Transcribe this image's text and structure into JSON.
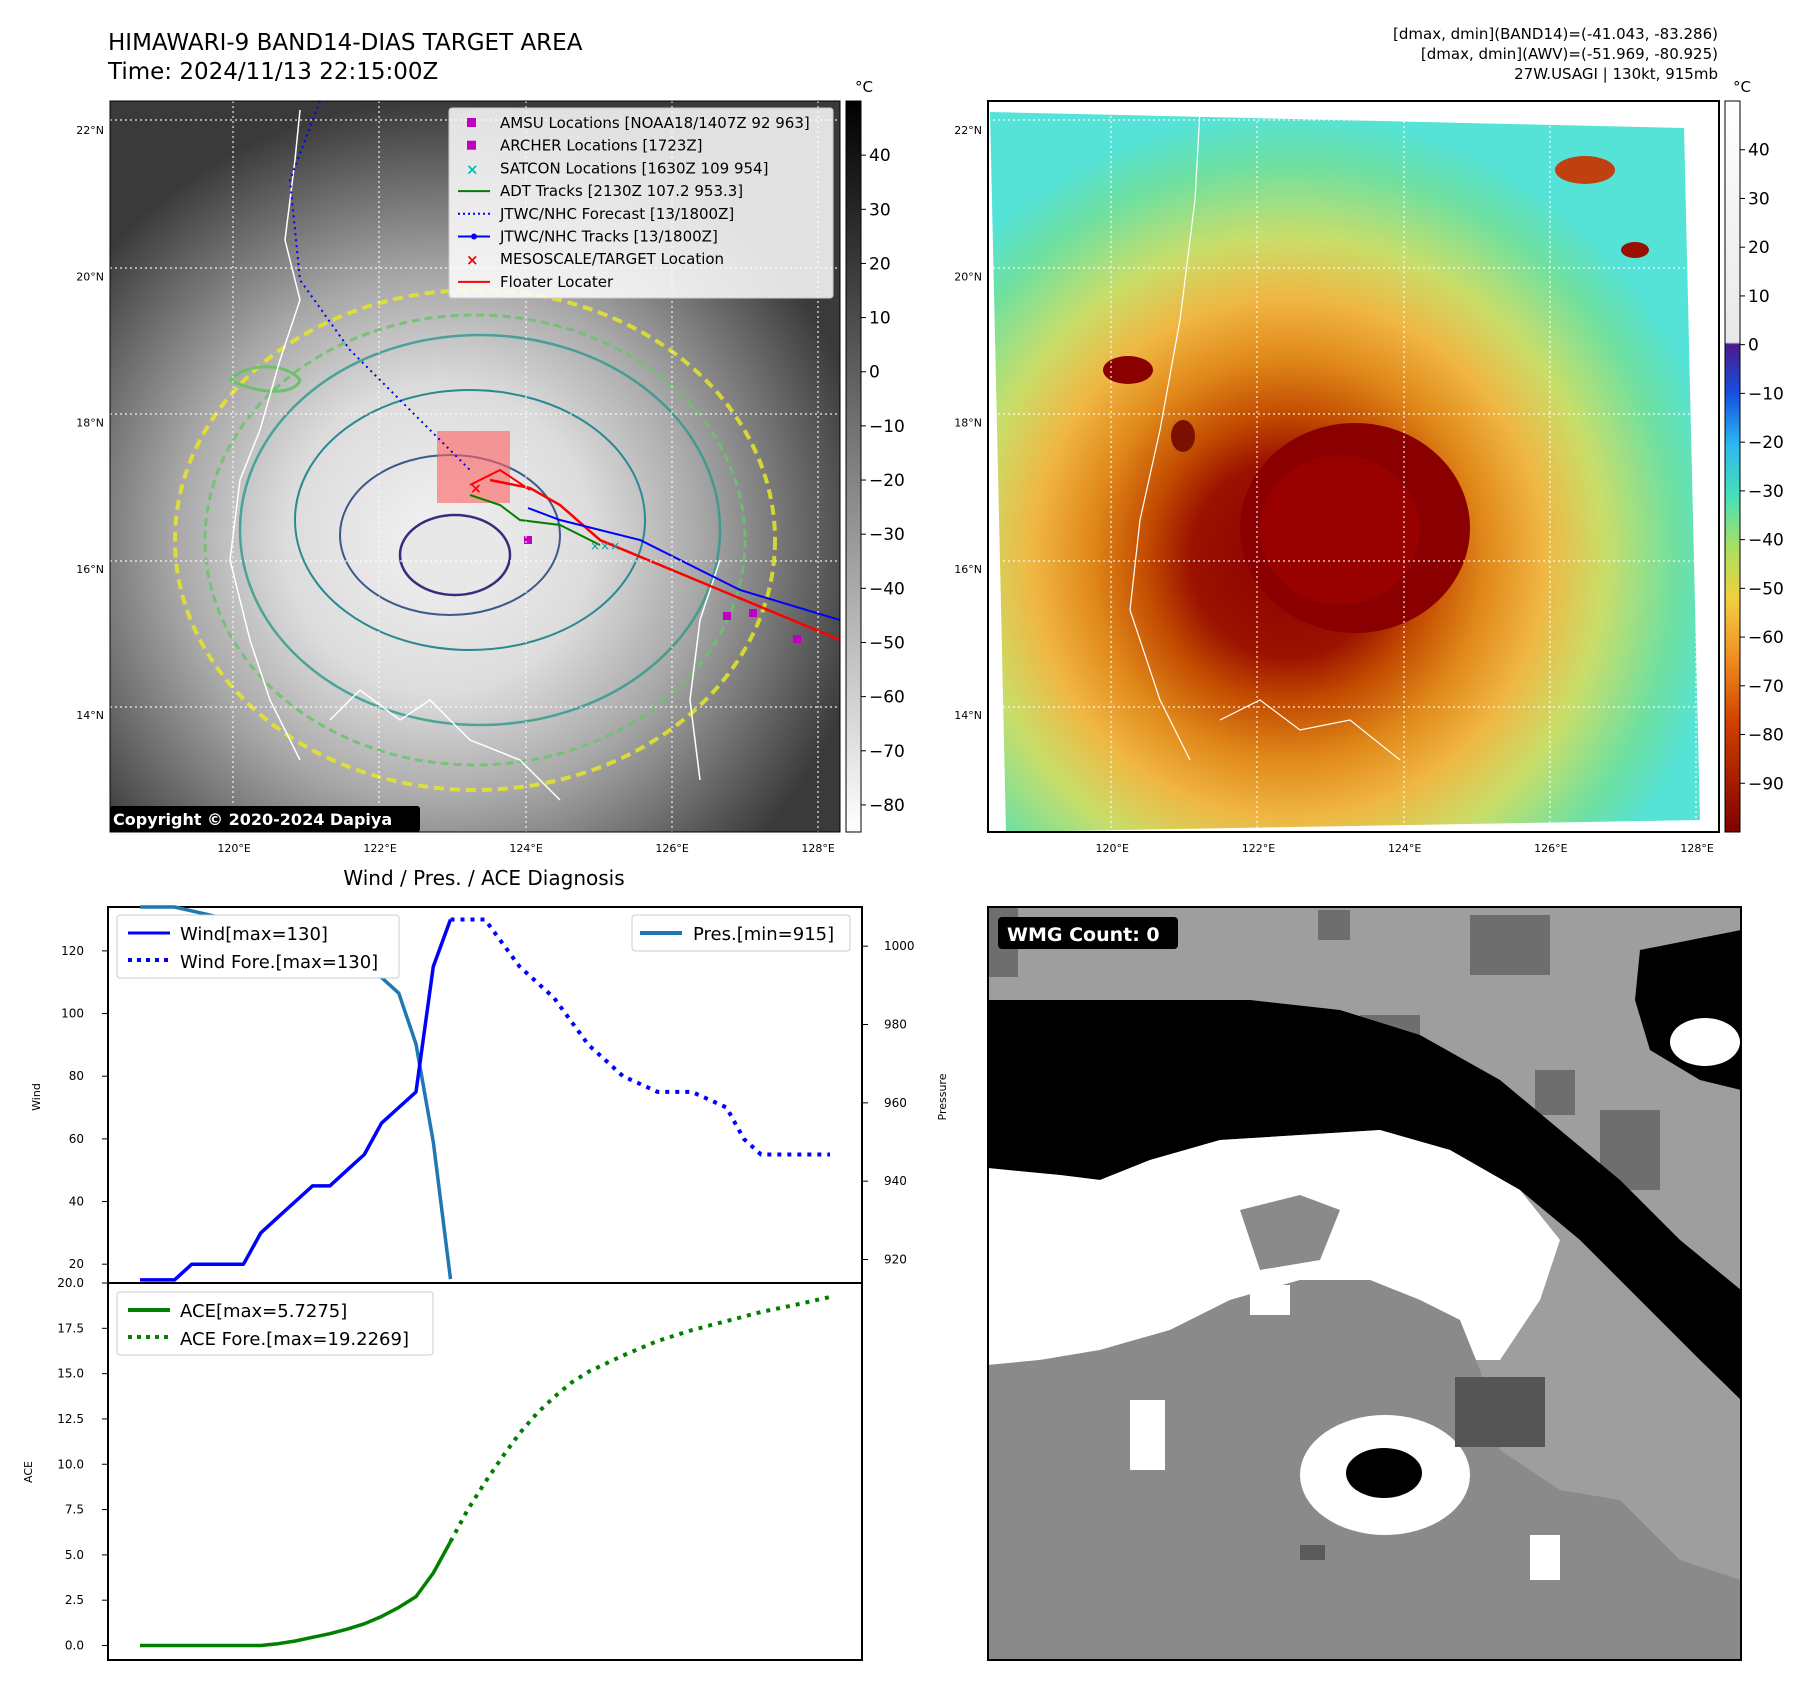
{
  "header": {
    "title_line1": "HIMAWARI-9 BAND14-DIAS TARGET AREA",
    "title_line2": "Time: 2024/11/13 22:15:00Z",
    "info_line1": "[dmax, dmin](BAND14)=(-41.043, -83.286)",
    "info_line2": "[dmax, dmin](AWV)=(-51.969, -80.925)",
    "info_line3": "27W.USAGI | 130kt, 915mb"
  },
  "map": {
    "lat_labels": [
      "22°N",
      "20°N",
      "18°N",
      "16°N",
      "14°N"
    ],
    "lon_labels": [
      "120°E",
      "122°E",
      "124°E",
      "126°E",
      "128°E"
    ],
    "lat_values": [
      22,
      20,
      18,
      16,
      14
    ],
    "lon_values": [
      120,
      122,
      124,
      126,
      128
    ],
    "lat_range": [
      12.4,
      22.4
    ],
    "lon_range": [
      118.3,
      128.3
    ],
    "copyright": "Copyright © 2020-2024 Dapiya",
    "legend": [
      {
        "label": "AMSU Locations [NOAA18/1407Z 92 963]",
        "marker": "square",
        "color": "#c000c0"
      },
      {
        "label": "ARCHER Locations [1723Z]",
        "marker": "square",
        "color": "#c000c0"
      },
      {
        "label": "SATCON Locations [1630Z 109 954]",
        "marker": "x",
        "color": "#00bfbf"
      },
      {
        "label": "ADT Tracks [2130Z 107.2 953.3]",
        "marker": "line",
        "color": "#007f00"
      },
      {
        "label": "JTWC/NHC Forecast [13/1800Z]",
        "marker": "dotted",
        "color": "#0000ff"
      },
      {
        "label": "JTWC/NHC Tracks [13/1800Z]",
        "marker": "line-dot",
        "color": "#0000ff"
      },
      {
        "label": "MESOSCALE/TARGET Location",
        "marker": "x",
        "color": "#ff0000"
      },
      {
        "label": "Floater Locater",
        "marker": "line",
        "color": "#ff0000"
      }
    ]
  },
  "colorbar_gray": {
    "unit": "°C",
    "ticks": [
      "40",
      "30",
      "20",
      "10",
      "0",
      "−10",
      "−20",
      "−30",
      "−40",
      "−50",
      "−60",
      "−70",
      "−80"
    ],
    "tick_values": [
      40,
      30,
      20,
      10,
      0,
      -10,
      -20,
      -30,
      -40,
      -50,
      -60,
      -70,
      -80
    ],
    "range": [
      -85,
      50
    ]
  },
  "colorbar_color": {
    "unit": "°C",
    "ticks": [
      "40",
      "30",
      "20",
      "10",
      "0",
      "−10",
      "−20",
      "−30",
      "−40",
      "−50",
      "−60",
      "−70",
      "−80",
      "−90"
    ],
    "tick_values": [
      40,
      30,
      20,
      10,
      0,
      -10,
      -20,
      -30,
      -40,
      -50,
      -60,
      -70,
      -80,
      -90
    ],
    "range": [
      -100,
      50
    ]
  },
  "wmg": {
    "label": "WMG Count: 0"
  },
  "chart_data": [
    {
      "type": "line",
      "title": "Wind / Pres. / ACE Diagnosis",
      "ylabel": "Wind",
      "ylabel_right": "Pressure",
      "ylim": [
        14,
        134
      ],
      "ylim_right": [
        914,
        1010
      ],
      "xlim": [
        0,
        40
      ],
      "y_ticks": [
        20,
        40,
        60,
        80,
        100,
        120
      ],
      "y_ticks_right": [
        920,
        940,
        960,
        980,
        1000
      ],
      "series": [
        {
          "name": "Wind[max=130]",
          "style": "solid",
          "color": "#0000ff",
          "x": [
            0,
            2,
            3,
            4,
            5,
            6,
            7,
            8,
            9,
            10,
            11,
            12,
            13,
            14,
            15,
            16,
            17,
            18
          ],
          "values": [
            15,
            15,
            20,
            20,
            20,
            20,
            30,
            35,
            40,
            45,
            45,
            50,
            55,
            65,
            70,
            75,
            115,
            130
          ]
        },
        {
          "name": "Wind Fore.[max=130]",
          "style": "dotted",
          "color": "#0000ff",
          "x": [
            18,
            19,
            20,
            22,
            24,
            26,
            27,
            28,
            30,
            31,
            32,
            34,
            35,
            36,
            37,
            38,
            39,
            40
          ],
          "values": [
            130,
            130,
            130,
            115,
            105,
            90,
            85,
            80,
            75,
            75,
            75,
            70,
            60,
            55,
            55,
            55,
            55,
            55
          ]
        },
        {
          "name": "Pres.[min=915]",
          "style": "solid",
          "color": "#1f77b4",
          "x": [
            0,
            2,
            3,
            4,
            5,
            6,
            7,
            8,
            9,
            10,
            11,
            12,
            13,
            14,
            15,
            16,
            17,
            18
          ],
          "values": [
            1010,
            1010,
            1009,
            1008,
            1007,
            1005,
            1003,
            1001,
            998,
            997,
            995,
            995,
            994,
            992,
            988,
            975,
            950,
            915
          ]
        }
      ]
    },
    {
      "type": "line",
      "ylabel": "ACE",
      "ylim": [
        -0.8,
        20.0
      ],
      "xlim": [
        0,
        40
      ],
      "y_ticks": [
        0.0,
        2.5,
        5.0,
        7.5,
        10.0,
        12.5,
        15.0,
        17.5,
        20.0
      ],
      "y_tick_labels": [
        "0.0",
        "2.5",
        "5.0",
        "7.5",
        "10.0",
        "12.5",
        "15.0",
        "17.5",
        "20.0"
      ],
      "series": [
        {
          "name": "ACE[max=5.7275]",
          "style": "solid",
          "color": "#007f00",
          "x": [
            0,
            2,
            3,
            4,
            5,
            6,
            7,
            8,
            9,
            10,
            11,
            12,
            13,
            14,
            15,
            16,
            17,
            18
          ],
          "values": [
            0,
            0,
            0,
            0,
            0,
            0,
            0,
            0.1,
            0.25,
            0.45,
            0.65,
            0.9,
            1.2,
            1.6,
            2.1,
            2.7,
            4.0,
            5.73
          ]
        },
        {
          "name": "ACE Fore.[max=19.2269]",
          "style": "dotted",
          "color": "#007f00",
          "x": [
            18,
            19,
            20,
            21,
            22,
            23,
            24,
            25,
            26,
            28,
            30,
            32,
            34,
            36,
            38,
            40
          ],
          "values": [
            5.73,
            7.5,
            9.0,
            10.4,
            11.7,
            12.8,
            13.7,
            14.5,
            15.1,
            16.0,
            16.8,
            17.4,
            17.9,
            18.4,
            18.8,
            19.23
          ]
        }
      ]
    }
  ]
}
